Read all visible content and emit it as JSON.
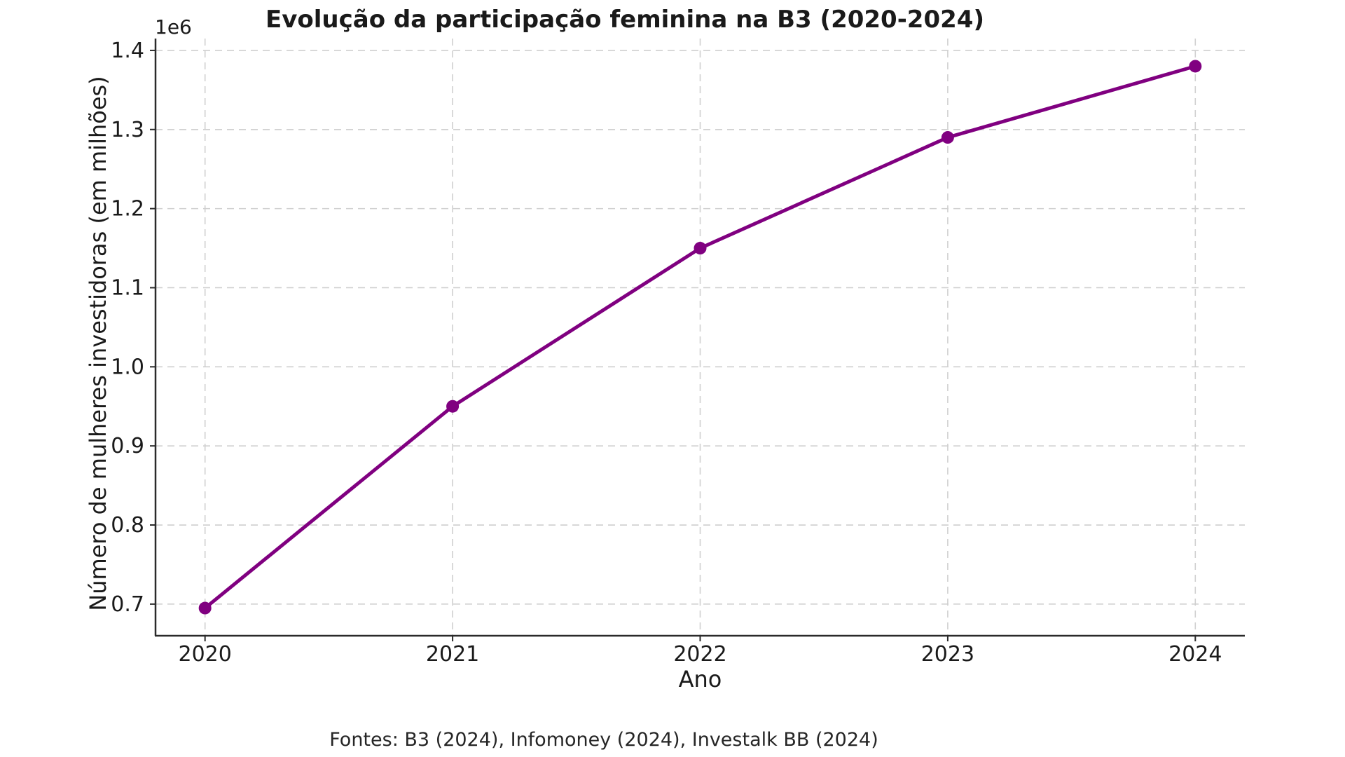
{
  "figure": {
    "background": "#ffffff",
    "footer": "Fontes: B3 (2024), Infomoney (2024), Investalk BB (2024)"
  },
  "chart_data": {
    "type": "line",
    "title": "Evolução da participação feminina na B3 (2020-2024)",
    "xlabel": "Ano",
    "ylabel": "Número de mulheres investidoras (em milhões)",
    "x": [
      2020,
      2021,
      2022,
      2023,
      2024
    ],
    "values": [
      695000,
      950000,
      1150000,
      1290000,
      1380000
    ],
    "xticks": [
      2020,
      2021,
      2022,
      2023,
      2024
    ],
    "yticks": [
      700000,
      800000,
      900000,
      1000000,
      1100000,
      1200000,
      1300000,
      1400000
    ],
    "y_offset_label": "1e6",
    "xlim": [
      2019.8,
      2024.2
    ],
    "ylim": [
      660000,
      1415000
    ],
    "grid": true,
    "grid_style": "dashed",
    "legend": false,
    "line_color": "#800080",
    "marker_style": "circle",
    "grid_color": "#cfcfcf",
    "spine_color": "#2a2a2a",
    "tick_text_color": "#1a1a1a"
  }
}
